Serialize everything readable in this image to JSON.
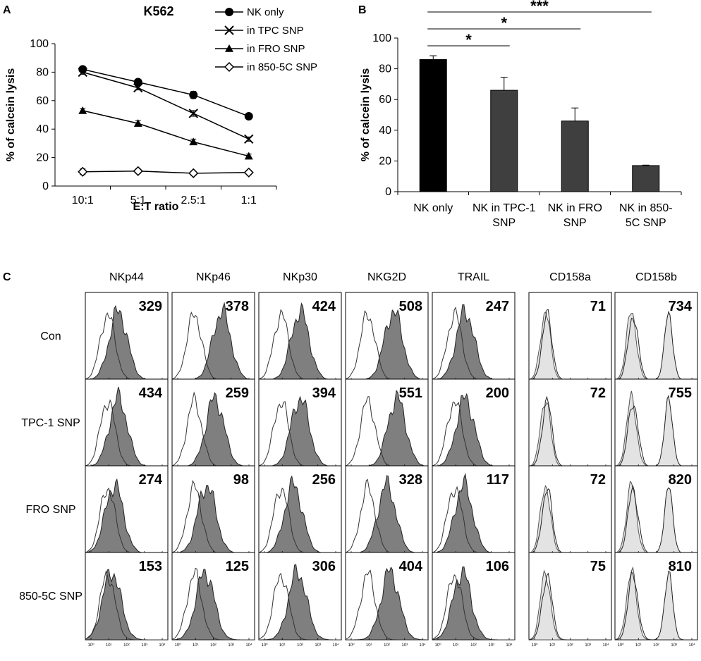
{
  "panel_labels": {
    "a": "A",
    "b": "B",
    "c": "C"
  },
  "chart_data": [
    {
      "type": "line",
      "title": "K562",
      "xlabel": "E:T ratio",
      "ylabel": "% of calcein lysis",
      "categories": [
        "10:1",
        "5:1",
        "2.5:1",
        "1:1"
      ],
      "ylim": [
        0,
        100
      ],
      "yticks": [
        "0",
        "20",
        "40",
        "60",
        "80",
        "100"
      ],
      "series": [
        {
          "name": "NK only",
          "marker": "filled-circle",
          "values": [
            82,
            73,
            64,
            49
          ],
          "errors": [
            1.5,
            2,
            2.5,
            1.5
          ]
        },
        {
          "name": "in TPC SNP",
          "marker": "cross",
          "values": [
            80,
            69,
            51,
            33
          ],
          "errors": [
            1.5,
            1.5,
            2,
            1.5
          ]
        },
        {
          "name": "in FRO SNP",
          "marker": "filled-triangle",
          "values": [
            53,
            44,
            31,
            21
          ],
          "errors": [
            1.5,
            2,
            2,
            1.5
          ]
        },
        {
          "name": "in 850-5C SNP",
          "marker": "open-diamond",
          "values": [
            10,
            10.5,
            9,
            9.5
          ],
          "errors": [
            2,
            1.5,
            1.5,
            1.5
          ]
        }
      ]
    },
    {
      "type": "bar",
      "ylabel": "% of calcein lysis",
      "categories": [
        [
          "NK only"
        ],
        [
          "NK in TPC-1",
          "SNP"
        ],
        [
          "NK in FRO",
          "SNP"
        ],
        [
          "NK in 850-",
          "5C SNP"
        ]
      ],
      "values": [
        86,
        66,
        46,
        17
      ],
      "errors": [
        2.5,
        8.5,
        8.5,
        0.3
      ],
      "colors": [
        "#000000",
        "#3f3f3f",
        "#3f3f3f",
        "#3f3f3f"
      ],
      "ylim": [
        0,
        100
      ],
      "yticks": [
        "0",
        "20",
        "40",
        "60",
        "80",
        "100"
      ],
      "significance": [
        {
          "from": 0,
          "to": 1,
          "label": "*"
        },
        {
          "from": 0,
          "to": 2,
          "label": "*"
        },
        {
          "from": 0,
          "to": 3,
          "label": "***"
        }
      ]
    },
    {
      "type": "histogram-grid",
      "columns": [
        "NKp44",
        "NKp46",
        "NKp30",
        "NKG2D",
        "TRAIL",
        "CD158a",
        "CD158b"
      ],
      "rows": [
        "Con",
        "TPC-1 SNP",
        "FRO SNP",
        "850-5C SNP"
      ],
      "mfi": [
        [
          "329",
          "378",
          "424",
          "508",
          "247",
          "71",
          "734"
        ],
        [
          "434",
          "259",
          "394",
          "551",
          "200",
          "72",
          "755"
        ],
        [
          "274",
          "98",
          "256",
          "328",
          "117",
          "72",
          "820"
        ],
        [
          "153",
          "125",
          "306",
          "404",
          "106",
          "75",
          "810"
        ]
      ],
      "shaded_peak_position": [
        [
          0.4,
          0.6,
          0.5,
          0.58,
          0.4,
          0.2,
          0.65
        ],
        [
          0.4,
          0.52,
          0.5,
          0.62,
          0.4,
          0.2,
          0.65
        ],
        [
          0.35,
          0.42,
          0.42,
          0.5,
          0.38,
          0.2,
          0.65
        ],
        [
          0.32,
          0.4,
          0.47,
          0.54,
          0.36,
          0.2,
          0.65
        ]
      ],
      "axis_tick_labels": [
        "10⁰",
        "10¹",
        "10²",
        "10³",
        "10⁴"
      ]
    }
  ]
}
